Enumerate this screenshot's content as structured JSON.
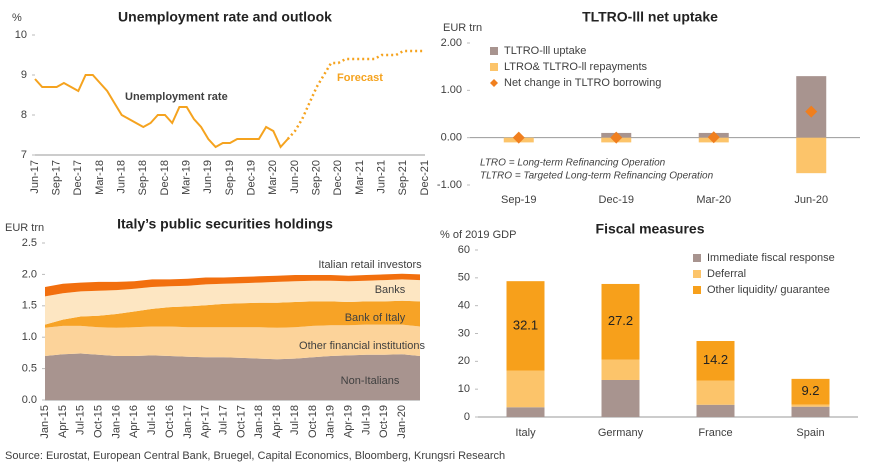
{
  "chart_data": [
    {
      "type": "line",
      "title": "Unemployment rate and outlook",
      "y_label": "%",
      "categories": [
        "Jun-17",
        null,
        null,
        "Sep-17",
        null,
        null,
        "Dec-17",
        null,
        null,
        "Mar-18",
        null,
        null,
        "Jun-18",
        null,
        null,
        "Sep-18",
        null,
        null,
        "Dec-18",
        null,
        null,
        "Mar-19",
        null,
        null,
        "Jun-19",
        null,
        null,
        "Sep-19",
        null,
        null,
        "Dec-19",
        null,
        null,
        "Mar-20",
        null,
        null,
        "Jun-20",
        null,
        null,
        "Sep-20",
        null,
        null,
        "Dec-20",
        null,
        null,
        "Mar-21",
        null,
        null,
        "Jun-21",
        null,
        null,
        "Sep-21",
        null,
        null,
        "Dec-21"
      ],
      "series": [
        {
          "name": "Unemployment rate",
          "color": "#f5a31f",
          "dash": false,
          "values": [
            8.9,
            8.7,
            8.7,
            8.7,
            8.8,
            8.7,
            8.6,
            9.0,
            9.0,
            8.8,
            8.6,
            8.3,
            8.0,
            7.9,
            7.8,
            7.7,
            7.8,
            8.0,
            8.0,
            7.8,
            8.2,
            8.2,
            7.9,
            7.7,
            7.4,
            7.2,
            7.3,
            7.3,
            7.4,
            7.4,
            7.4,
            7.4,
            7.7,
            7.6,
            7.2,
            7.4,
            null,
            null,
            null,
            null,
            null,
            null,
            null,
            null,
            null,
            null,
            null,
            null,
            null,
            null,
            null,
            null,
            null,
            null,
            null
          ]
        },
        {
          "name": "Forecast",
          "color": "#f5a31f",
          "dash": true,
          "values": [
            null,
            null,
            null,
            null,
            null,
            null,
            null,
            null,
            null,
            null,
            null,
            null,
            null,
            null,
            null,
            null,
            null,
            null,
            null,
            null,
            null,
            null,
            null,
            null,
            null,
            null,
            null,
            null,
            null,
            null,
            null,
            null,
            null,
            null,
            null,
            7.4,
            7.6,
            7.9,
            8.3,
            8.7,
            9.0,
            9.3,
            9.3,
            9.4,
            9.4,
            9.4,
            9.4,
            9.4,
            9.5,
            9.5,
            9.5,
            9.6,
            9.6,
            9.6,
            9.6
          ]
        }
      ],
      "ylim": [
        7,
        10
      ],
      "yticks": [
        7,
        8,
        9,
        10
      ],
      "grid": false
    },
    {
      "type": "bar",
      "stacked": true,
      "title": "TLTRO-lll net uptake",
      "y_label": "EUR trn",
      "categories": [
        "Sep-19",
        "Dec-19",
        "Mar-20",
        "Jun-20"
      ],
      "series": [
        {
          "name": "TLTRO-lll uptake",
          "color": "#a8948f",
          "values": [
            0.0,
            0.1,
            0.1,
            1.3
          ]
        },
        {
          "name": "LTRO& TLTRO-ll repayments",
          "color": "#fcc46a",
          "values": [
            -0.1,
            -0.1,
            -0.1,
            -0.75
          ]
        },
        {
          "name": "Net change in TLTRO borrowing",
          "color": "#f07f1e",
          "marker": "diamond",
          "values": [
            0.0,
            0.0,
            0.01,
            0.55
          ]
        }
      ],
      "notes": [
        "LTRO = Long-term Refinancing Operation",
        "TLTRO = Targeted Long-term Refinancing Operation"
      ],
      "ylim": [
        -1,
        2
      ],
      "yticks": [
        {
          "value": -1,
          "label": "-1.00"
        },
        {
          "value": 0,
          "label": "0.00"
        },
        {
          "value": 1,
          "label": "1.00"
        },
        {
          "value": 2,
          "label": "2.00"
        }
      ],
      "legend": "top-left",
      "grid": false
    },
    {
      "type": "area",
      "stacked": true,
      "title": "Italy’s public securities holdings",
      "y_label": "EUR trn",
      "categories": [
        "Jan-15",
        "Apr-15",
        "Jul-15",
        "Oct-15",
        "Jan-16",
        "Apr-16",
        "Jul-16",
        "Oct-16",
        "Jan-17",
        "Apr-17",
        "Jul-17",
        "Oct-17",
        "Jan-18",
        "Apr-18",
        "Jul-18",
        "Oct-18",
        "Jan-19",
        "Apr-19",
        "Jul-19",
        "Oct-19",
        "Jan-20",
        null
      ],
      "series": [
        {
          "name": "Non-Italians",
          "color": "#a8948f",
          "values": [
            0.7,
            0.73,
            0.74,
            0.72,
            0.7,
            0.7,
            0.71,
            0.7,
            0.69,
            0.68,
            0.68,
            0.67,
            0.66,
            0.65,
            0.66,
            0.68,
            0.7,
            0.71,
            0.72,
            0.72,
            0.73,
            0.7
          ]
        },
        {
          "name": "Other financial institutions",
          "color": "#fcd39a",
          "values": [
            0.45,
            0.45,
            0.44,
            0.44,
            0.45,
            0.46,
            0.46,
            0.47,
            0.47,
            0.48,
            0.48,
            0.49,
            0.5,
            0.5,
            0.5,
            0.5,
            0.49,
            0.48,
            0.48,
            0.48,
            0.47,
            0.47
          ]
        },
        {
          "name": "Bank of Italy",
          "color": "#f7a326",
          "values": [
            0.05,
            0.1,
            0.15,
            0.18,
            0.22,
            0.25,
            0.28,
            0.31,
            0.33,
            0.35,
            0.37,
            0.38,
            0.39,
            0.4,
            0.4,
            0.39,
            0.38,
            0.37,
            0.37,
            0.37,
            0.38,
            0.4
          ]
        },
        {
          "name": "Banks",
          "color": "#fde6c2",
          "values": [
            0.45,
            0.42,
            0.4,
            0.4,
            0.38,
            0.36,
            0.35,
            0.33,
            0.33,
            0.33,
            0.32,
            0.32,
            0.32,
            0.33,
            0.33,
            0.33,
            0.33,
            0.33,
            0.33,
            0.34,
            0.34,
            0.34
          ]
        },
        {
          "name": "Italian retail investors",
          "color": "#f26f0e",
          "values": [
            0.15,
            0.15,
            0.14,
            0.14,
            0.13,
            0.12,
            0.12,
            0.11,
            0.11,
            0.11,
            0.1,
            0.1,
            0.1,
            0.1,
            0.1,
            0.09,
            0.09,
            0.09,
            0.09,
            0.09,
            0.09,
            0.09
          ]
        }
      ],
      "ylim": [
        0,
        2.5
      ],
      "yticks": [
        {
          "value": 0,
          "label": "0.0"
        },
        0.5,
        {
          "value": 1,
          "label": "1.0"
        },
        1.5,
        {
          "value": 2,
          "label": "2.0"
        },
        2.5
      ],
      "grid": false
    },
    {
      "type": "bar",
      "stacked": true,
      "title": "Fiscal measures",
      "y_label": "% of 2019 GDP",
      "categories": [
        "Italy",
        "Germany",
        "France",
        "Spain"
      ],
      "series": [
        {
          "name": "Immediate fiscal response",
          "color": "#a8948f",
          "values": [
            3.5,
            13.3,
            4.4,
            3.7
          ]
        },
        {
          "name": "Deferral",
          "color": "#fcc46a",
          "values": [
            13.2,
            7.3,
            8.7,
            0.8
          ]
        },
        {
          "name": "Other liquidity/ guarantee",
          "color": "#f7a01b",
          "data_labels": true,
          "values": [
            32.1,
            27.2,
            14.2,
            9.2
          ]
        }
      ],
      "ylim": [
        0,
        60
      ],
      "yticks": [
        0,
        10,
        20,
        30,
        40,
        50,
        60
      ],
      "legend": "top-right",
      "grid": false
    }
  ],
  "source": "Source: Eurostat, European Central Bank, Bruegel, Capital Economics, Bloomberg, Krungsri Research"
}
